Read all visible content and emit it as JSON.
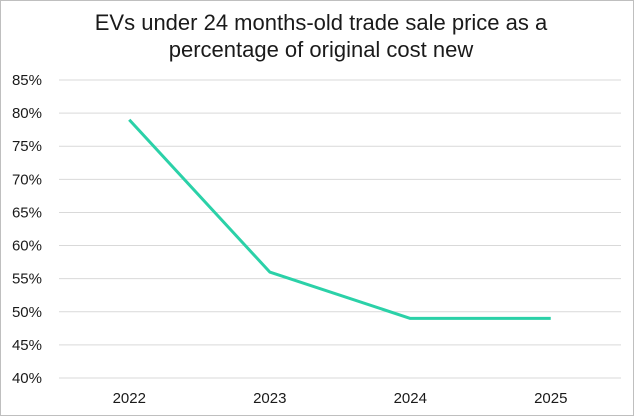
{
  "chart_data": {
    "type": "line",
    "title_lines": [
      "EVs under 24 months-old trade sale price as a",
      "percentage of original cost new"
    ],
    "categories": [
      "2022",
      "2023",
      "2024",
      "2025"
    ],
    "series": [
      {
        "values": [
          79,
          56,
          49,
          49
        ],
        "color": "#2bd1a8"
      }
    ],
    "ylim": [
      40,
      85
    ],
    "yticks": [
      40,
      45,
      50,
      55,
      60,
      65,
      70,
      75,
      80,
      85
    ],
    "y_tick_format": "%",
    "grid": true,
    "grid_color": "#d9d9d9",
    "legend": "none"
  }
}
